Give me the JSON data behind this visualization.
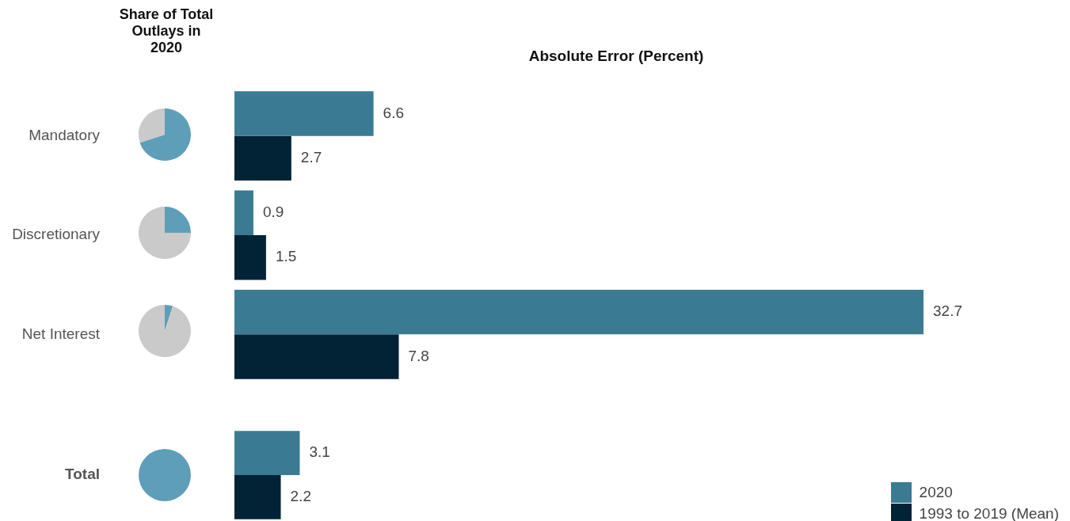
{
  "chart_data": [
    {
      "type": "bar",
      "orientation": "horizontal",
      "title": "Absolute Error (Percent)",
      "categories": [
        "Mandatory",
        "Discretionary",
        "Net Interest"
      ],
      "data_labels": true,
      "legend": false,
      "series": [
        {
          "color": "#3b7a93",
          "values": [
            6.6,
            0.9,
            32.7
          ]
        },
        {
          "color": "#022235",
          "values": [
            2.7,
            1.5,
            7.8
          ]
        }
      ]
    },
    {
      "type": "bar",
      "orientation": "horizontal",
      "categories": [
        "Total"
      ],
      "data_labels": true,
      "legend": "bottom right",
      "series": [
        {
          "name": "2020",
          "color": "#3b7a93",
          "values": [
            3.1
          ]
        },
        {
          "name": "1993 to 2019 (Mean)",
          "color": "#022235",
          "values": [
            2.2
          ]
        }
      ]
    },
    {
      "type": "pie",
      "title": "Share of Total Outlays in 2020",
      "categories": [
        null,
        null
      ],
      "values": [
        70,
        30
      ],
      "colors": [
        "#5f9eb8",
        "#cacaca"
      ]
    },
    {
      "type": "pie",
      "categories": [
        null,
        null
      ],
      "values": [
        25,
        75
      ],
      "colors": [
        "#5f9eb8",
        "#cacaca"
      ]
    },
    {
      "type": "pie",
      "categories": [
        null,
        null
      ],
      "values": [
        5,
        95
      ],
      "colors": [
        "#5f9eb8",
        "#cacaca"
      ]
    },
    {
      "type": "pie",
      "categories": [
        null
      ],
      "values": [
        100
      ],
      "colors": [
        "#5f9eb8"
      ]
    }
  ]
}
